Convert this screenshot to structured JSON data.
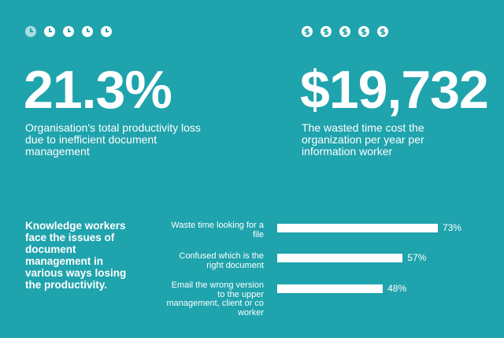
{
  "stats": [
    {
      "value": "21.3%",
      "caption": "Organisation's total productivity loss due to inefficient document management"
    },
    {
      "value": "$19,732",
      "caption": "The wasted time cost the organization per year per information worker"
    }
  ],
  "intro": "Knowledge workers face the issues of document management in various ways losing the productivity.",
  "chart_data": {
    "type": "bar",
    "orientation": "horizontal",
    "color": "#ffffff",
    "categories": [
      "Waste time looking for a file",
      "Confused which is the right document",
      "Email the wrong version to the upper management, client or co worker"
    ],
    "values": [
      73,
      57,
      48
    ],
    "value_labels": [
      "73%",
      "57%",
      "48%"
    ]
  }
}
